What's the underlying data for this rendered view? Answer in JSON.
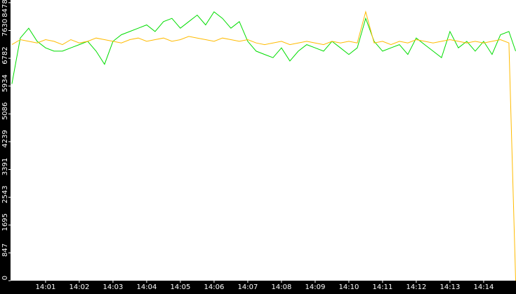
{
  "chart_data": {
    "type": "line",
    "x": [
      0,
      0.25,
      0.5,
      0.75,
      1,
      1.25,
      1.5,
      1.75,
      2,
      2.25,
      2.5,
      2.75,
      3,
      3.25,
      3.5,
      3.75,
      4,
      4.25,
      4.5,
      4.75,
      5,
      5.25,
      5.5,
      5.75,
      6,
      6.25,
      6.5,
      6.75,
      7,
      7.25,
      7.5,
      7.75,
      8,
      8.25,
      8.5,
      8.75,
      9,
      9.25,
      9.5,
      9.75,
      10,
      10.25,
      10.5,
      10.75,
      11,
      11.25,
      11.5,
      11.75,
      12,
      12.25,
      12.5,
      12.75,
      13,
      13.25,
      13.5,
      13.75,
      14,
      14.25,
      14.5,
      14.75,
      14.95
    ],
    "series": [
      {
        "color": "#00dd00",
        "values": [
          6000,
          7400,
          7700,
          7300,
          7100,
          7000,
          7000,
          7100,
          7200,
          7300,
          7000,
          6600,
          7300,
          7500,
          7600,
          7700,
          7800,
          7600,
          7900,
          8000,
          7700,
          7900,
          8100,
          7800,
          8200,
          8000,
          7700,
          7900,
          7300,
          7000,
          6900,
          6800,
          7100,
          6700,
          7000,
          7200,
          7100,
          7000,
          7300,
          7100,
          6900,
          7100,
          8000,
          7300,
          7000,
          7100,
          7200,
          6900,
          7400,
          7200,
          7000,
          6800,
          7600,
          7100,
          7300,
          7000,
          7300,
          6900,
          7500,
          7600,
          7000
        ]
      },
      {
        "color": "#ffbb00",
        "values": [
          7200,
          7350,
          7300,
          7250,
          7350,
          7300,
          7200,
          7350,
          7250,
          7300,
          7400,
          7350,
          7300,
          7250,
          7350,
          7400,
          7300,
          7350,
          7400,
          7300,
          7350,
          7450,
          7400,
          7350,
          7300,
          7400,
          7350,
          7300,
          7350,
          7250,
          7200,
          7250,
          7300,
          7200,
          7250,
          7300,
          7250,
          7200,
          7300,
          7250,
          7300,
          7250,
          8200,
          7250,
          7300,
          7200,
          7300,
          7250,
          7350,
          7300,
          7250,
          7300,
          7350,
          7300,
          7250,
          7300,
          7250,
          7300,
          7350,
          7250,
          0
        ]
      }
    ],
    "xlim": [
      -0.04,
      14.96
    ],
    "xticks": [
      {
        "value": 1,
        "label": "14:01"
      },
      {
        "value": 2,
        "label": "14:02"
      },
      {
        "value": 3,
        "label": "14:03"
      },
      {
        "value": 4,
        "label": "14:04"
      },
      {
        "value": 5,
        "label": "14:05"
      },
      {
        "value": 6,
        "label": "14:06"
      },
      {
        "value": 7,
        "label": "14:07"
      },
      {
        "value": 8,
        "label": "14:08"
      },
      {
        "value": 9,
        "label": "14:09"
      },
      {
        "value": 10,
        "label": "14:10"
      },
      {
        "value": 11,
        "label": "14:11"
      },
      {
        "value": 12,
        "label": "14:12"
      },
      {
        "value": 13,
        "label": "14:13"
      },
      {
        "value": 14,
        "label": "14:14"
      }
    ],
    "ylim": [
      0,
      8560
    ],
    "yticks": [
      0,
      847,
      1695,
      2543,
      3391,
      4239,
      5086,
      5934,
      6782,
      7630,
      8478
    ]
  }
}
